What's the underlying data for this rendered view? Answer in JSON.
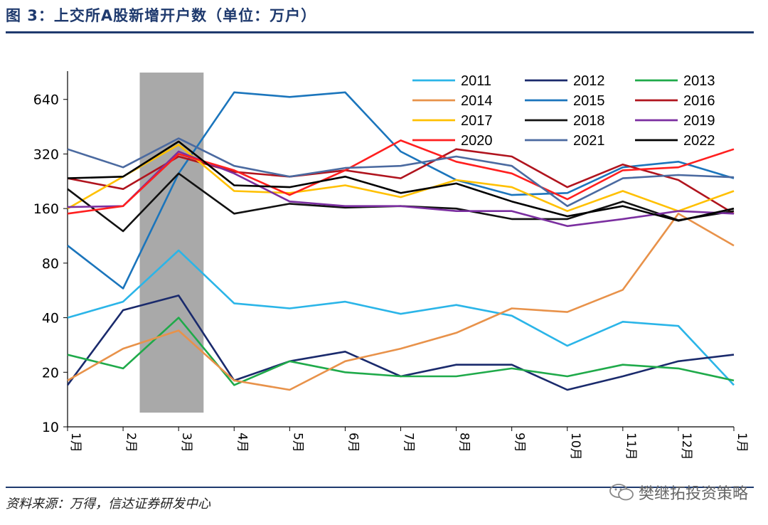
{
  "header": {
    "title": "图 3：上交所A股新增开户数（单位：万户）"
  },
  "footer": {
    "source": "资料来源：万得，信达证券研发中心",
    "watermark": "樊继拓投资策略"
  },
  "chart_data": {
    "type": "line",
    "title": "",
    "xlabel": "",
    "ylabel": "",
    "y_scale": "log2",
    "ylim": [
      10,
      900
    ],
    "yticks": [
      10,
      20,
      40,
      80,
      160,
      320,
      640
    ],
    "grid": false,
    "legend_position": "top-right",
    "categories": [
      "1月",
      "2月",
      "3月",
      "4月",
      "5月",
      "6月",
      "7月",
      "8月",
      "9月",
      "10月",
      "11月",
      "12月",
      "1月"
    ],
    "highlight_span": {
      "from": "2月",
      "to": "3月"
    },
    "series": [
      {
        "name": "2011",
        "color": "#2bb5e8",
        "values": [
          40,
          49,
          94,
          48,
          45,
          49,
          42,
          47,
          41,
          28,
          38,
          36,
          17
        ]
      },
      {
        "name": "2012",
        "color": "#1a2a6c",
        "values": [
          17,
          44,
          53,
          18,
          23,
          26,
          19,
          22,
          22,
          16,
          19,
          23,
          25
        ]
      },
      {
        "name": "2013",
        "color": "#1faa4a",
        "values": [
          25,
          21,
          40,
          17,
          23,
          20,
          19,
          19,
          21,
          19,
          22,
          21,
          18
        ]
      },
      {
        "name": "2014",
        "color": "#e8924a",
        "values": [
          18,
          27,
          34,
          18,
          16,
          23,
          27,
          33,
          45,
          43,
          57,
          150,
          100
        ]
      },
      {
        "name": "2015",
        "color": "#1b75bc",
        "values": [
          100,
          58,
          250,
          700,
          660,
          700,
          330,
          230,
          190,
          195,
          270,
          290,
          235
        ]
      },
      {
        "name": "2016",
        "color": "#b0141e",
        "values": [
          235,
          205,
          310,
          255,
          240,
          260,
          235,
          340,
          310,
          210,
          280,
          230,
          150
        ]
      },
      {
        "name": "2017",
        "color": "#ffc000",
        "values": [
          160,
          240,
          360,
          200,
          195,
          215,
          185,
          230,
          210,
          155,
          200,
          155,
          200
        ]
      },
      {
        "name": "2018",
        "color": "#111111",
        "values": [
          205,
          120,
          250,
          150,
          170,
          162,
          165,
          160,
          140,
          140,
          175,
          138,
          155
        ]
      },
      {
        "name": "2019",
        "color": "#7b2fa0",
        "values": [
          163,
          165,
          330,
          250,
          175,
          165,
          165,
          155,
          155,
          128,
          140,
          155,
          150
        ]
      },
      {
        "name": "2020",
        "color": "#ff1f1f",
        "values": [
          150,
          165,
          320,
          260,
          190,
          260,
          380,
          290,
          250,
          180,
          260,
          270,
          340
        ]
      },
      {
        "name": "2021",
        "color": "#4b6aa0",
        "values": [
          340,
          270,
          390,
          275,
          240,
          268,
          275,
          310,
          275,
          165,
          235,
          245,
          238
        ]
      },
      {
        "name": "2022",
        "color": "#000000",
        "values": [
          235,
          240,
          375,
          215,
          210,
          240,
          195,
          220,
          175,
          145,
          165,
          137,
          160
        ]
      }
    ]
  }
}
